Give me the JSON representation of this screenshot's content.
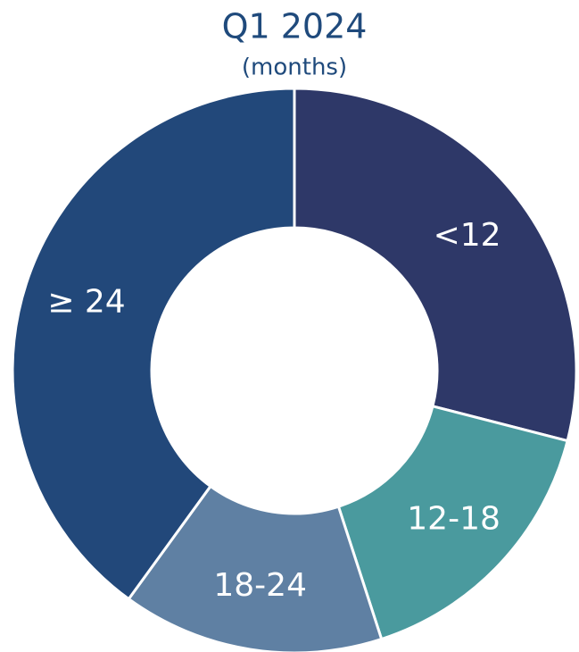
{
  "chart_data": {
    "type": "donut",
    "title": "Q1 2024",
    "subtitle": "(months)",
    "categories": [
      "<12",
      "12-18",
      "18-24",
      "≥ 24"
    ],
    "values": [
      29,
      16,
      15,
      40
    ],
    "colors": [
      "#2e3868",
      "#4a9a9e",
      "#5f80a3",
      "#22487a"
    ]
  }
}
